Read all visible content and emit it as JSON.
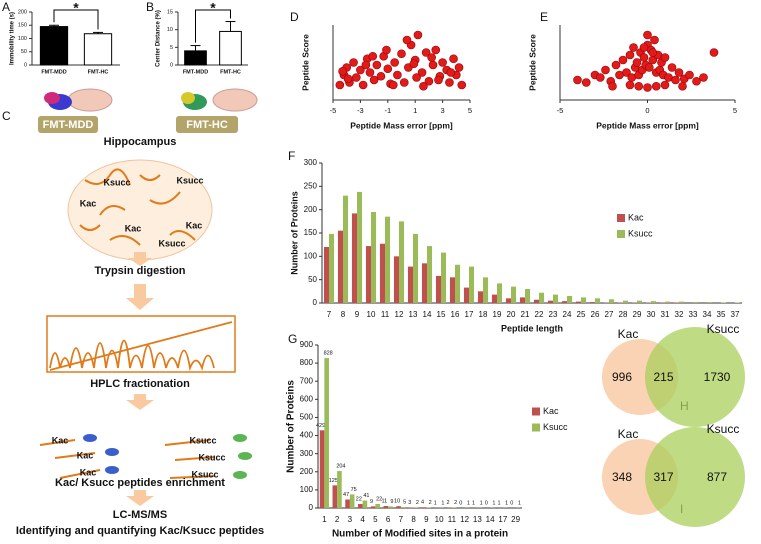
{
  "chart_data": [
    {
      "type": "bar",
      "ylabel": "Immobility time (s)",
      "categories": [
        "FMT-MDD",
        "FMT-HC"
      ],
      "values": [
        145,
        118
      ],
      "errors": [
        5,
        5
      ],
      "colors": [
        "#000000",
        "#ffffff"
      ],
      "ylim": [
        0,
        200
      ],
      "yticks": [
        0,
        50,
        100,
        150,
        200
      ],
      "annotation": "*"
    },
    {
      "type": "bar",
      "ylabel": "Center Distance (%)",
      "categories": [
        "FMT-MDD",
        "FMT-HC"
      ],
      "values": [
        4,
        9.5
      ],
      "errors": [
        1.5,
        2.8
      ],
      "colors": [
        "#000000",
        "#ffffff"
      ],
      "ylim": [
        0,
        15
      ],
      "yticks": [
        0,
        5,
        10,
        15
      ],
      "annotation": "*"
    },
    {
      "type": "scatter",
      "xlabel": "Peptide Mass error [ppm]",
      "ylabel": "Peptide Score",
      "color": "#e41a1a",
      "xlim": [
        -5,
        5
      ],
      "xticks": [
        -5,
        -3,
        -1,
        1,
        3,
        5
      ],
      "ylim": [
        0,
        300
      ],
      "x": [
        -4.5,
        -4.2,
        -4,
        -3.8,
        -3.5,
        -3.3,
        -3,
        -2.8,
        -2.5,
        -2.3,
        -2,
        -1.8,
        -1.5,
        -1.3,
        -1,
        -0.8,
        -0.5,
        -0.3,
        0,
        0.2,
        0.5,
        0.7,
        1,
        1.2,
        1.5,
        1.8,
        2,
        2.3,
        2.5,
        2.8,
        3,
        3.3,
        3.5,
        3.8,
        4,
        4.2,
        4.4,
        -3.9,
        -2.6,
        -1.1,
        0.4,
        1.1,
        2.2,
        3.6,
        -0.6,
        0.9,
        1.6,
        -2.1,
        2.7,
        -4.3
      ],
      "values": [
        60,
        100,
        130,
        70,
        150,
        90,
        120,
        60,
        165,
        110,
        80,
        140,
        95,
        175,
        125,
        65,
        150,
        100,
        185,
        70,
        130,
        220,
        160,
        260,
        110,
        190,
        75,
        140,
        200,
        95,
        150,
        120,
        70,
        165,
        100,
        130,
        60,
        85,
        140,
        200,
        240,
        90,
        170,
        110,
        60,
        145,
        55,
        175,
        80,
        115
      ]
    },
    {
      "type": "scatter",
      "xlabel": "Peptide Mass error [ppm]",
      "ylabel": "Peptide Score",
      "color": "#e41a1a",
      "xlim": [
        -5,
        5
      ],
      "xticks": [
        -5,
        0,
        5
      ],
      "ylim": [
        0,
        300
      ],
      "x": [
        -4,
        -3.5,
        -3,
        -2.7,
        -2.4,
        -2.1,
        -1.8,
        -1.6,
        -1.4,
        -1.2,
        -1,
        -0.9,
        -0.8,
        -0.7,
        -0.6,
        -0.5,
        -0.4,
        -0.3,
        -0.2,
        -0.1,
        0,
        0.1,
        0.2,
        0.3,
        0.4,
        0.5,
        0.6,
        0.7,
        0.8,
        0.9,
        1,
        1.2,
        1.4,
        1.6,
        1.8,
        2.1,
        2.4,
        2.8,
        3.2,
        3.8,
        -0.5,
        0,
        0.5,
        -1,
        1,
        -2,
        2,
        -0.2,
        0.3,
        0
      ],
      "values": [
        80,
        70,
        100,
        90,
        120,
        75,
        140,
        100,
        160,
        110,
        180,
        90,
        210,
        130,
        150,
        100,
        190,
        120,
        170,
        140,
        220,
        130,
        200,
        160,
        240,
        110,
        180,
        120,
        150,
        100,
        170,
        90,
        130,
        80,
        110,
        85,
        100,
        75,
        90,
        190,
        55,
        50,
        55,
        60,
        60,
        55,
        55,
        210,
        190,
        260
      ]
    },
    {
      "type": "bar",
      "xlabel": "Peptide length",
      "ylabel": "Number of Proteins",
      "legend": "center right",
      "ylim": [
        0,
        300
      ],
      "yticks": [
        0,
        50,
        100,
        150,
        200,
        250,
        300
      ],
      "categories": [
        7,
        8,
        9,
        10,
        11,
        12,
        13,
        14,
        15,
        16,
        17,
        18,
        19,
        20,
        21,
        22,
        23,
        24,
        25,
        26,
        27,
        28,
        29,
        30,
        31,
        32,
        33,
        34,
        35,
        37
      ],
      "series": [
        {
          "name": "Kac",
          "color": "#c0504d",
          "values": [
            120,
            155,
            192,
            122,
            127,
            100,
            78,
            85,
            58,
            55,
            33,
            25,
            18,
            10,
            12,
            7,
            5,
            4,
            3,
            2,
            1,
            1,
            1,
            1,
            1,
            1,
            0,
            0,
            0,
            0
          ]
        },
        {
          "name": "Ksucc",
          "color": "#9bbb59",
          "values": [
            148,
            230,
            238,
            195,
            185,
            175,
            148,
            122,
            108,
            82,
            78,
            55,
            42,
            35,
            30,
            22,
            18,
            15,
            12,
            10,
            8,
            5,
            5,
            4,
            3,
            3,
            2,
            2,
            1,
            1
          ]
        }
      ]
    },
    {
      "type": "bar",
      "xlabel": "Number of Modified sites in a protein",
      "ylabel": "Number of Proteins",
      "legend": "right",
      "data_labels": true,
      "ylim": [
        0,
        900
      ],
      "yticks": [
        0,
        100,
        200,
        300,
        400,
        500,
        600,
        700,
        800,
        900
      ],
      "categories": [
        1,
        2,
        3,
        4,
        5,
        6,
        7,
        8,
        9,
        10,
        11,
        12,
        13,
        14,
        17,
        29
      ],
      "series": [
        {
          "name": "Kac",
          "color": "#c0504d",
          "values": [
            429,
            125,
            47,
            22,
            9,
            11,
            10,
            3,
            4,
            1,
            2,
            0,
            1,
            0,
            1,
            0
          ]
        },
        {
          "name": "Ksucc",
          "color": "#9bbb59",
          "values": [
            828,
            204,
            75,
            41,
            22,
            9,
            5,
            2,
            2,
            1,
            2,
            1,
            1,
            1,
            1,
            1
          ]
        }
      ]
    },
    {
      "type": "venn",
      "sets": [
        "Kac",
        "Ksucc"
      ],
      "values": [
        996,
        215,
        1730
      ],
      "colors": [
        "#f8cba6",
        "#a9cf5b"
      ]
    },
    {
      "type": "venn",
      "sets": [
        "Kac",
        "Ksucc"
      ],
      "values": [
        348,
        317,
        877
      ],
      "colors": [
        "#f8cba6",
        "#a9cf5b"
      ]
    }
  ],
  "panel_labels": [
    "A",
    "B",
    "C",
    "D",
    "E",
    "F",
    "G",
    "H",
    "I"
  ],
  "workflow": {
    "groups": [
      "FMT-MDD",
      "FMT-HC"
    ],
    "tissue": "Hippocampus",
    "tissue_labels": [
      "Ksucc",
      "Kac",
      "Ksucc",
      "Kac",
      "Kac",
      "Ksucc"
    ],
    "steps": [
      "Trypsin digestion",
      "HPLC fractionation",
      "Kac/ Ksucc peptides enrichment",
      "LC-MS/MS"
    ],
    "enrichment_labels": [
      "Kac",
      "Kac",
      "Kac",
      "Ksucc",
      "Ksucc",
      "Ksucc"
    ],
    "final": "Identifying and quantifying Kac/Ksucc peptides"
  }
}
